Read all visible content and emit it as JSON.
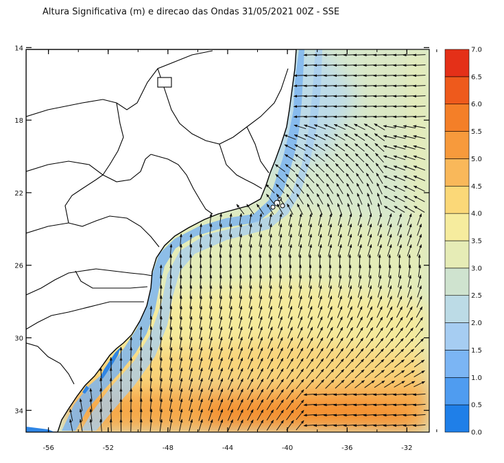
{
  "title": "Altura Significativa (m) e direcao das Ondas 31/05/2021 00Z - SSE",
  "map": {
    "lon_range": [
      -57.5,
      -30.5
    ],
    "lat_range": [
      -35.2,
      -14.1
    ],
    "lon_ticks": [
      {
        "value": -56,
        "label": "-56"
      },
      {
        "value": -52,
        "label": "-52"
      },
      {
        "value": -48,
        "label": "-48"
      },
      {
        "value": -44,
        "label": "-44"
      },
      {
        "value": -40,
        "label": "-40"
      },
      {
        "value": -36,
        "label": "-36"
      },
      {
        "value": -32,
        "label": "-32"
      }
    ],
    "lat_ticks": [
      {
        "value": -14,
        "label": "14"
      },
      {
        "value": -18,
        "label": "18"
      },
      {
        "value": -22,
        "label": "22"
      },
      {
        "value": -26,
        "label": "26"
      },
      {
        "value": -30,
        "label": "30"
      },
      {
        "value": -34,
        "label": "34"
      }
    ]
  },
  "colorbar": {
    "levels": [
      "0.0",
      "0.5",
      "1.0",
      "1.5",
      "2.0",
      "2.5",
      "3.0",
      "3.5",
      "4.0",
      "4.5",
      "5.0",
      "5.5",
      "6.0",
      "6.5",
      "7.0"
    ],
    "colors": [
      "#1f7fe8",
      "#4f9cf0",
      "#7bb5f4",
      "#a6cdf2",
      "#bcdbe6",
      "#cfe3cf",
      "#e6ecb6",
      "#f6ec9e",
      "#fbd878",
      "#f9b85a",
      "#f79a3c",
      "#f47f28",
      "#ee5a1c",
      "#e43018",
      "#e0002a"
    ]
  },
  "colors": {
    "land": "#ffffff",
    "border": "#000000",
    "arrow": "#111111"
  },
  "icons": {
    "vectors": "wave-direction-arrows"
  }
}
